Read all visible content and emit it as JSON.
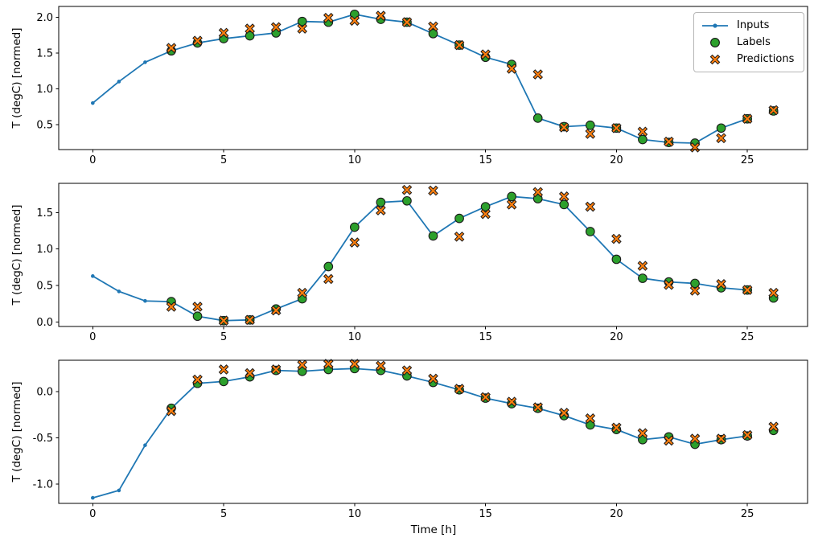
{
  "figure": {
    "background": "#ffffff",
    "xlabel": "Time [h]",
    "ylabel": "T (degC) [normed]"
  },
  "legend": {
    "position": "upper right of first subplot",
    "items": [
      {
        "label": "Inputs",
        "marker": "line-dot",
        "color": "#1f77b4"
      },
      {
        "label": "Labels",
        "marker": "circle",
        "color": "#2ca02c"
      },
      {
        "label": "Predictions",
        "marker": "x",
        "color": "#ff7f0e"
      }
    ]
  },
  "colors": {
    "inputs": "#1f77b4",
    "labels": "#2ca02c",
    "predictions": "#ff7f0e",
    "marker_edge": "#1a1a1a",
    "axes": "#000000",
    "text": "#000000"
  },
  "chart_data": [
    {
      "type": "line",
      "subplot": 1,
      "ylabel": "T (degC) [normed]",
      "xlabel": "",
      "grid": false,
      "xlim": [
        -1.3,
        27.3
      ],
      "ylim": [
        0.15,
        2.15
      ],
      "xticks": [
        0,
        5,
        10,
        15,
        20,
        25
      ],
      "xtick_labels": [
        "0",
        "5",
        "10",
        "15",
        "20",
        "25"
      ],
      "yticks": [
        0.5,
        1.0,
        1.5,
        2.0
      ],
      "ytick_labels": [
        "0.5",
        "1.0",
        "1.5",
        "2.0"
      ],
      "series": [
        {
          "name": "Inputs",
          "style": "line-dot",
          "x": [
            0,
            1,
            2,
            3,
            4,
            5,
            6,
            7,
            8,
            9,
            10,
            11,
            12,
            13,
            14,
            15,
            16,
            17,
            18,
            19,
            20,
            21,
            22,
            23,
            24,
            25
          ],
          "y": [
            0.8,
            1.1,
            1.37,
            1.53,
            1.64,
            1.7,
            1.74,
            1.78,
            1.94,
            1.93,
            2.04,
            1.97,
            1.93,
            1.77,
            1.61,
            1.44,
            1.34,
            0.59,
            0.47,
            0.49,
            0.45,
            0.29,
            0.25,
            0.24,
            0.45,
            0.58
          ]
        },
        {
          "name": "Labels",
          "style": "circle",
          "x": [
            3,
            4,
            5,
            6,
            7,
            8,
            9,
            10,
            11,
            12,
            13,
            14,
            15,
            16,
            17,
            18,
            19,
            20,
            21,
            22,
            23,
            24,
            25,
            26
          ],
          "y": [
            1.53,
            1.64,
            1.7,
            1.74,
            1.78,
            1.94,
            1.93,
            2.04,
            1.97,
            1.93,
            1.77,
            1.61,
            1.44,
            1.34,
            0.59,
            0.47,
            0.49,
            0.45,
            0.29,
            0.25,
            0.24,
            0.45,
            0.58,
            0.69
          ]
        },
        {
          "name": "Predictions",
          "style": "x",
          "x": [
            3,
            4,
            5,
            6,
            7,
            8,
            9,
            10,
            11,
            12,
            13,
            14,
            15,
            16,
            17,
            18,
            19,
            20,
            21,
            22,
            23,
            24,
            25,
            26
          ],
          "y": [
            1.57,
            1.67,
            1.78,
            1.84,
            1.86,
            1.84,
            1.99,
            1.95,
            2.02,
            1.93,
            1.87,
            1.61,
            1.48,
            1.28,
            1.2,
            0.46,
            0.37,
            0.45,
            0.4,
            0.26,
            0.18,
            0.31,
            0.58,
            0.7
          ]
        }
      ]
    },
    {
      "type": "line",
      "subplot": 2,
      "ylabel": "T (degC) [normed]",
      "xlabel": "",
      "grid": false,
      "xlim": [
        -1.3,
        27.3
      ],
      "ylim": [
        -0.06,
        1.9
      ],
      "xticks": [
        0,
        5,
        10,
        15,
        20,
        25
      ],
      "xtick_labels": [
        "0",
        "5",
        "10",
        "15",
        "20",
        "25"
      ],
      "yticks": [
        0.0,
        0.5,
        1.0,
        1.5
      ],
      "ytick_labels": [
        "0.0",
        "0.5",
        "1.0",
        "1.5"
      ],
      "series": [
        {
          "name": "Inputs",
          "style": "line-dot",
          "x": [
            0,
            1,
            2,
            3,
            4,
            5,
            6,
            7,
            8,
            9,
            10,
            11,
            12,
            13,
            14,
            15,
            16,
            17,
            18,
            19,
            20,
            21,
            22,
            23,
            24,
            25
          ],
          "y": [
            0.63,
            0.42,
            0.29,
            0.28,
            0.08,
            0.02,
            0.03,
            0.18,
            0.32,
            0.76,
            1.3,
            1.64,
            1.66,
            1.18,
            1.42,
            1.58,
            1.72,
            1.69,
            1.61,
            1.24,
            0.86,
            0.6,
            0.55,
            0.53,
            0.47,
            0.44
          ]
        },
        {
          "name": "Labels",
          "style": "circle",
          "x": [
            3,
            4,
            5,
            6,
            7,
            8,
            9,
            10,
            11,
            12,
            13,
            14,
            15,
            16,
            17,
            18,
            19,
            20,
            21,
            22,
            23,
            24,
            25,
            26
          ],
          "y": [
            0.28,
            0.08,
            0.02,
            0.03,
            0.18,
            0.32,
            0.76,
            1.3,
            1.64,
            1.66,
            1.18,
            1.42,
            1.58,
            1.72,
            1.69,
            1.61,
            1.24,
            0.86,
            0.6,
            0.55,
            0.53,
            0.47,
            0.44,
            0.33
          ]
        },
        {
          "name": "Predictions",
          "style": "x",
          "x": [
            3,
            4,
            5,
            6,
            7,
            8,
            9,
            10,
            11,
            12,
            13,
            14,
            15,
            16,
            17,
            18,
            19,
            20,
            21,
            22,
            23,
            24,
            25,
            26
          ],
          "y": [
            0.21,
            0.21,
            0.02,
            0.03,
            0.16,
            0.4,
            0.59,
            1.09,
            1.53,
            1.81,
            1.8,
            1.17,
            1.48,
            1.61,
            1.78,
            1.72,
            1.58,
            1.14,
            0.77,
            0.51,
            0.43,
            0.52,
            0.44,
            0.4
          ]
        }
      ]
    },
    {
      "type": "line",
      "subplot": 3,
      "ylabel": "T (degC) [normed]",
      "xlabel": "Time [h]",
      "grid": false,
      "xlim": [
        -1.3,
        27.3
      ],
      "ylim": [
        -1.21,
        0.34
      ],
      "xticks": [
        0,
        5,
        10,
        15,
        20,
        25
      ],
      "xtick_labels": [
        "0",
        "5",
        "10",
        "15",
        "20",
        "25"
      ],
      "yticks": [
        -1.0,
        -0.5,
        0.0
      ],
      "ytick_labels": [
        "-1.0",
        "-0.5",
        "0.0"
      ],
      "series": [
        {
          "name": "Inputs",
          "style": "line-dot",
          "x": [
            0,
            1,
            2,
            3,
            4,
            5,
            6,
            7,
            8,
            9,
            10,
            11,
            12,
            13,
            14,
            15,
            16,
            17,
            18,
            19,
            20,
            21,
            22,
            23,
            24,
            25
          ],
          "y": [
            -1.15,
            -1.07,
            -0.58,
            -0.18,
            0.09,
            0.11,
            0.16,
            0.23,
            0.22,
            0.24,
            0.25,
            0.23,
            0.17,
            0.1,
            0.02,
            -0.07,
            -0.13,
            -0.18,
            -0.26,
            -0.36,
            -0.41,
            -0.52,
            -0.49,
            -0.57,
            -0.52,
            -0.48
          ]
        },
        {
          "name": "Labels",
          "style": "circle",
          "x": [
            3,
            4,
            5,
            6,
            7,
            8,
            9,
            10,
            11,
            12,
            13,
            14,
            15,
            16,
            17,
            18,
            19,
            20,
            21,
            22,
            23,
            24,
            25,
            26
          ],
          "y": [
            -0.18,
            0.09,
            0.11,
            0.16,
            0.23,
            0.22,
            0.24,
            0.25,
            0.23,
            0.17,
            0.1,
            0.02,
            -0.07,
            -0.13,
            -0.18,
            -0.26,
            -0.36,
            -0.41,
            -0.52,
            -0.49,
            -0.57,
            -0.52,
            -0.48,
            -0.42
          ]
        },
        {
          "name": "Predictions",
          "style": "x",
          "x": [
            3,
            4,
            5,
            6,
            7,
            8,
            9,
            10,
            11,
            12,
            13,
            14,
            15,
            16,
            17,
            18,
            19,
            20,
            21,
            22,
            23,
            24,
            25,
            26
          ],
          "y": [
            -0.21,
            0.13,
            0.24,
            0.2,
            0.24,
            0.29,
            0.3,
            0.3,
            0.28,
            0.23,
            0.14,
            0.03,
            -0.06,
            -0.11,
            -0.17,
            -0.23,
            -0.29,
            -0.39,
            -0.45,
            -0.53,
            -0.51,
            -0.51,
            -0.47,
            -0.38
          ]
        }
      ]
    }
  ]
}
